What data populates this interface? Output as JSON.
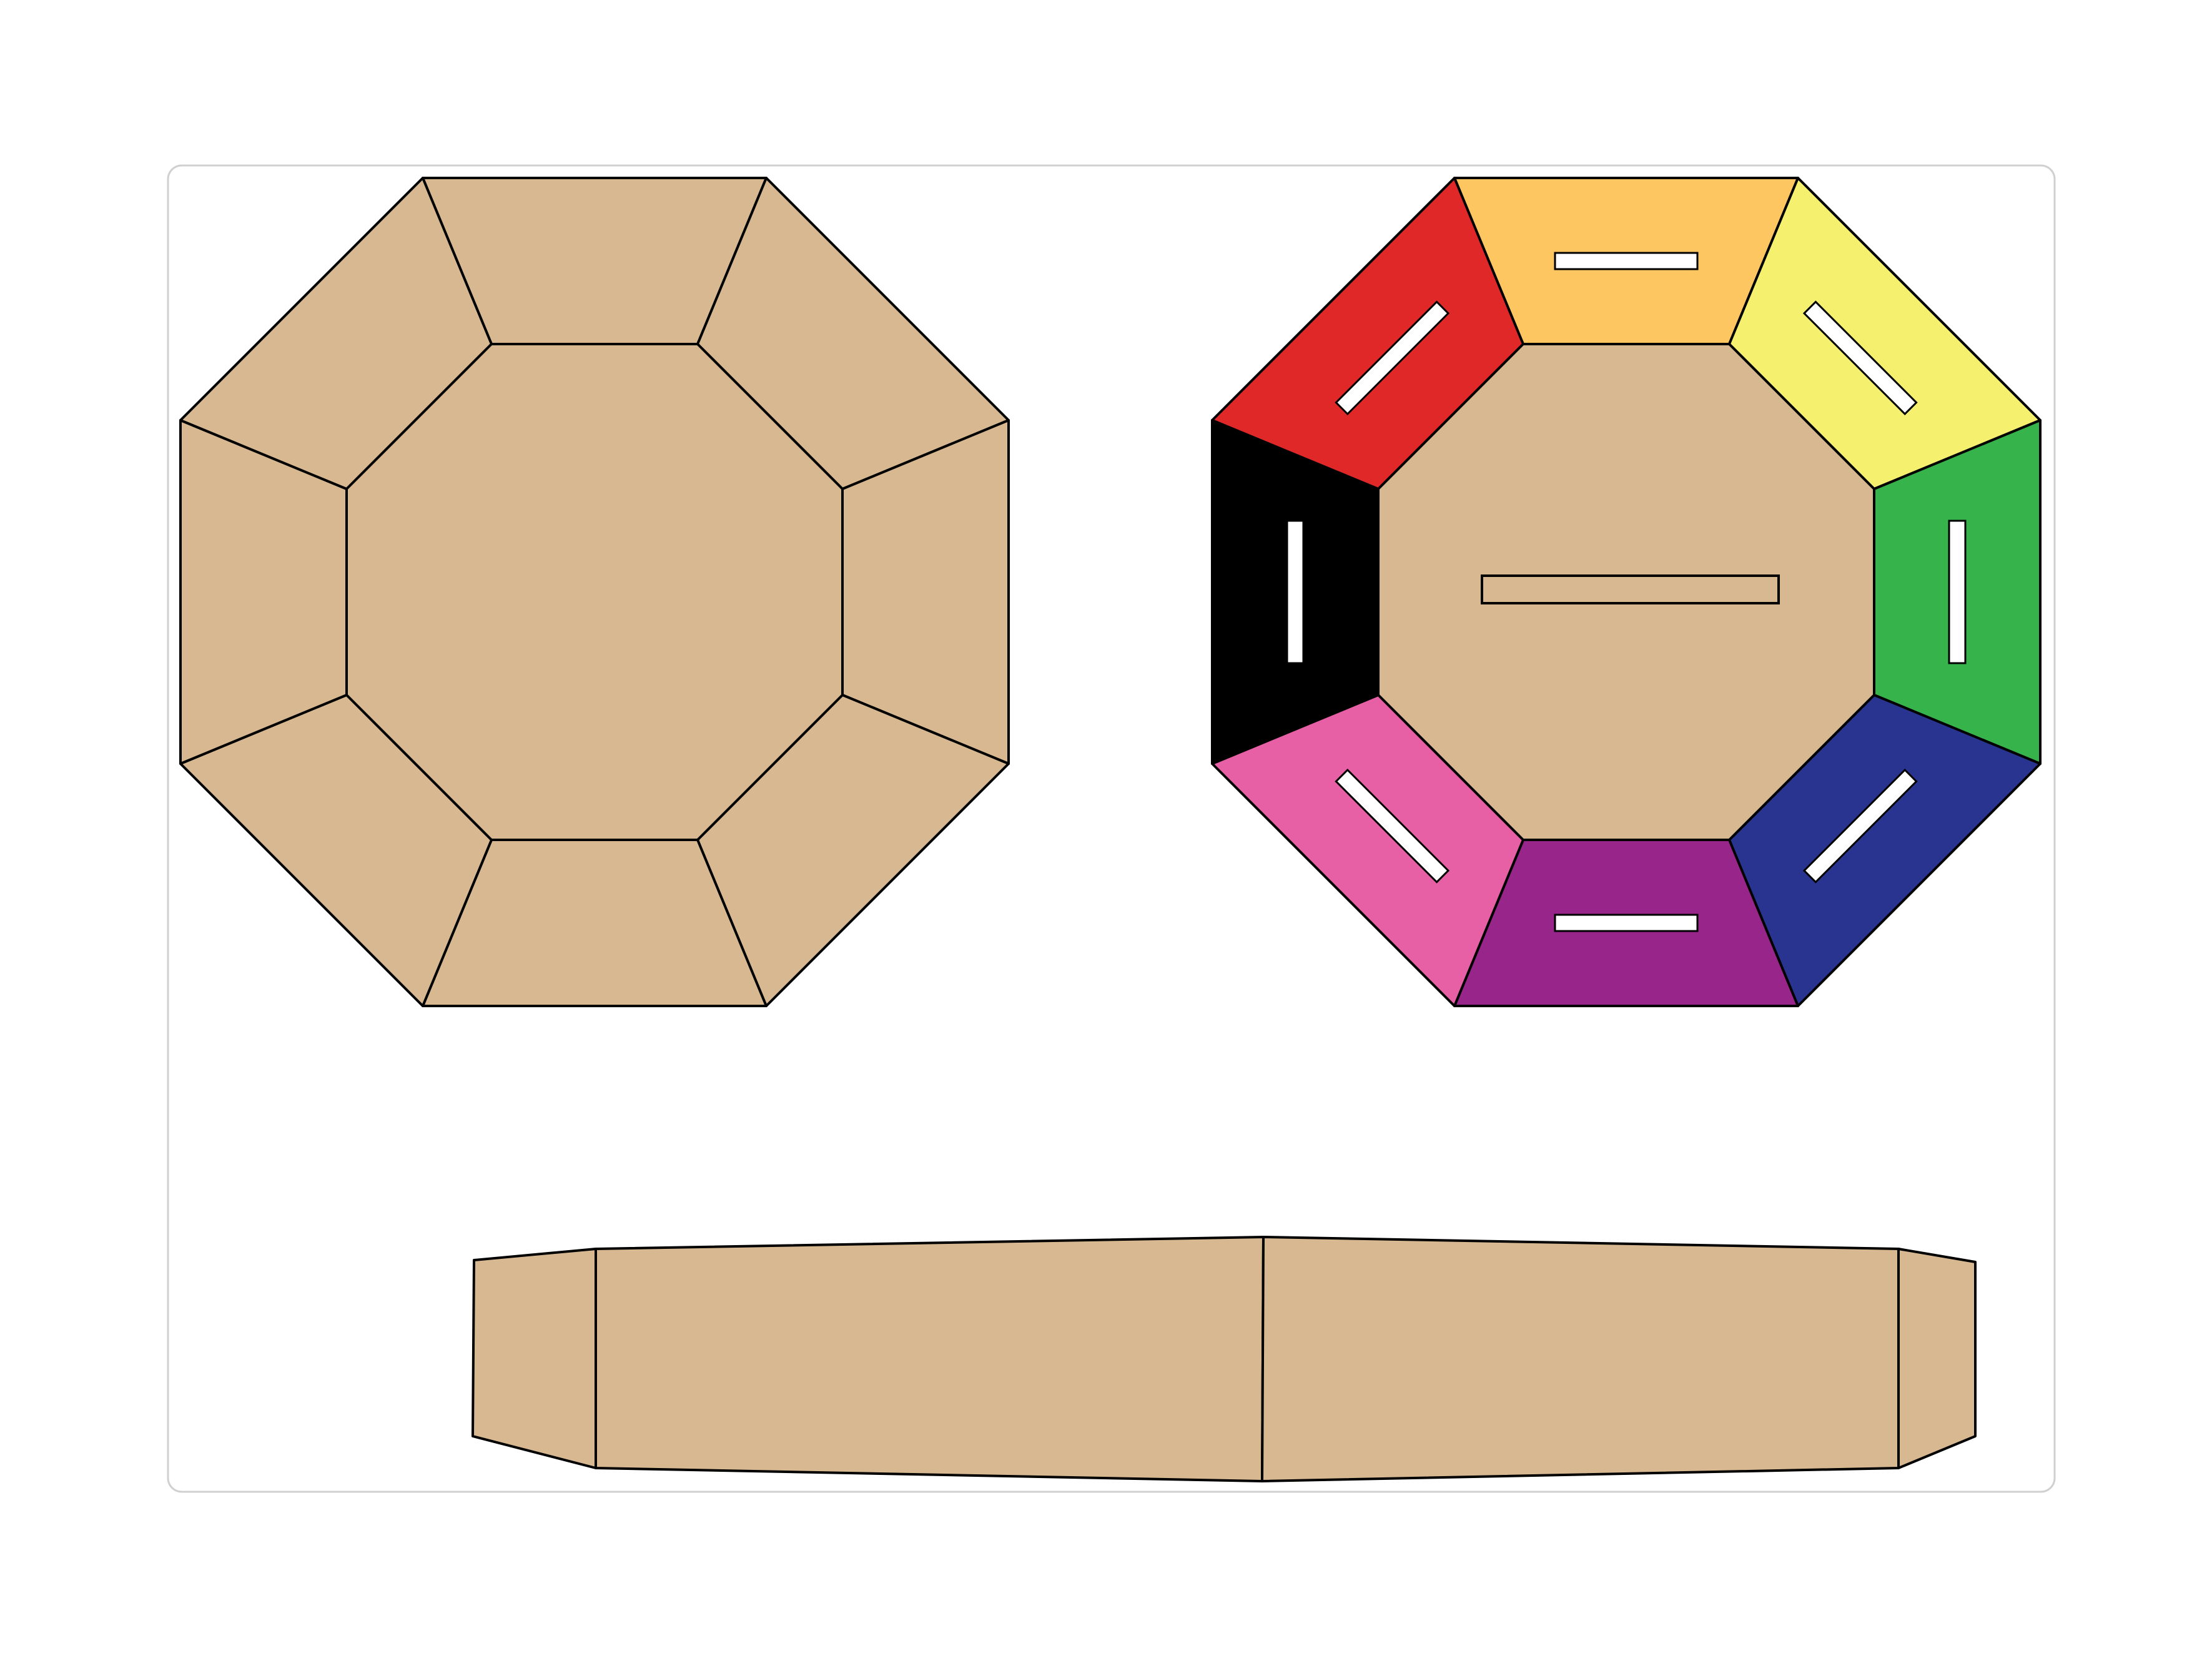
{
  "colors": {
    "cardboard": "#D8B890",
    "stroke": "#000000",
    "card_background": "#FFFFFF",
    "card_border": "#D0D0D0",
    "slot": "#FFFFFF"
  },
  "color_wheel_segments": [
    {
      "name": "orange",
      "color": "#FDC661"
    },
    {
      "name": "yellow",
      "color": "#F6F06F"
    },
    {
      "name": "green",
      "color": "#37B34B"
    },
    {
      "name": "blue",
      "color": "#28348F"
    },
    {
      "name": "purple",
      "color": "#982589"
    },
    {
      "name": "pink",
      "color": "#E75FA4"
    },
    {
      "name": "black",
      "color": "#000000"
    },
    {
      "name": "red",
      "color": "#E02828"
    }
  ],
  "plain_octagon_segments": 8
}
